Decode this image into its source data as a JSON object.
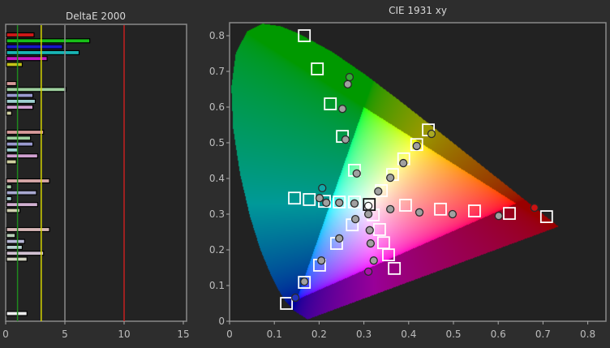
{
  "chart_data": [
    {
      "type": "bar",
      "orientation": "horizontal",
      "title": "DeltaE 2000",
      "xlim": [
        0,
        15
      ],
      "xticks": [
        "0",
        "5",
        "10",
        "15"
      ],
      "reference_lines": [
        {
          "value": 1,
          "color": "#1f8a1f"
        },
        {
          "value": 3,
          "color": "#d6d600"
        },
        {
          "value": 5,
          "color": "#8a8a8a"
        },
        {
          "value": 10,
          "color": "#c42020"
        }
      ],
      "groups": [
        {
          "colors": [
            "#d01818",
            "#18c018",
            "#1818c8",
            "#18b4b4",
            "#c418c4",
            "#c4c418"
          ],
          "values": [
            2.4,
            7.1,
            4.8,
            6.2,
            3.5,
            1.4
          ]
        },
        {
          "colors": [
            "#d89a9a",
            "#9ed09e",
            "#9a9ad0",
            "#9ed0d0",
            "#d0a0d0",
            "#d0d0a0"
          ],
          "values": [
            0.9,
            5.1,
            2.3,
            2.5,
            2.3,
            0.5
          ]
        },
        {
          "colors": [
            "#d89a9a",
            "#9ed09e",
            "#9a9ad0",
            "#9ed0d0",
            "#d0a0d0",
            "#d0d0a0"
          ],
          "values": [
            3.2,
            2.1,
            2.3,
            1.0,
            2.7,
            0.9
          ]
        },
        {
          "colors": [
            "#d8a8a8",
            "#a8d0a8",
            "#a8a8d0",
            "#a8d0d0",
            "#d0b0d0",
            "#d0d0b0"
          ],
          "values": [
            3.7,
            0.5,
            2.6,
            0.5,
            2.7,
            1.2
          ]
        },
        {
          "colors": [
            "#d8b8b8",
            "#b8d0b8",
            "#b8b8d8",
            "#b8d0d0",
            "#d0c0d0",
            "#d0d0c0"
          ],
          "values": [
            3.7,
            0.8,
            1.6,
            1.4,
            3.2,
            1.8
          ]
        },
        {
          "colors": [
            "#eeeeee"
          ],
          "values": [
            1.8
          ]
        }
      ]
    },
    {
      "type": "scatter",
      "title": "CIE 1931 xy",
      "xlim": [
        0,
        0.84
      ],
      "ylim": [
        0,
        0.84
      ],
      "xticks": [
        "0",
        "0.1",
        "0.2",
        "0.3",
        "0.4",
        "0.5",
        "0.6",
        "0.7",
        "0.8"
      ],
      "yticks": [
        "0",
        "0.1",
        "0.2",
        "0.3",
        "0.4",
        "0.5",
        "0.6",
        "0.7",
        "0.8"
      ],
      "ramps": [
        {
          "color": "#33aa33",
          "target": [
            [
              0.167,
              0.8
            ],
            [
              0.196,
              0.707
            ],
            [
              0.225,
              0.609
            ],
            [
              0.252,
              0.518
            ],
            [
              0.279,
              0.423
            ]
          ],
          "measured": [
            [
              0.268,
              0.684
            ],
            [
              0.264,
              0.664
            ],
            [
              0.252,
              0.595
            ],
            [
              0.259,
              0.509
            ],
            [
              0.284,
              0.414
            ]
          ]
        },
        {
          "color": "#aaaa22",
          "target": [
            [
              0.444,
              0.536
            ],
            [
              0.418,
              0.495
            ],
            [
              0.389,
              0.455
            ],
            [
              0.364,
              0.411
            ],
            [
              0.339,
              0.366
            ]
          ],
          "measured": [
            [
              0.451,
              0.525
            ],
            [
              0.418,
              0.491
            ],
            [
              0.388,
              0.443
            ],
            [
              0.359,
              0.402
            ],
            [
              0.332,
              0.364
            ]
          ]
        },
        {
          "color": "#cc1111",
          "target": [
            [
              0.708,
              0.293
            ],
            [
              0.625,
              0.302
            ],
            [
              0.547,
              0.309
            ],
            [
              0.471,
              0.314
            ],
            [
              0.393,
              0.325
            ]
          ],
          "measured": [
            [
              0.681,
              0.318
            ],
            [
              0.601,
              0.295
            ],
            [
              0.498,
              0.3
            ],
            [
              0.424,
              0.305
            ],
            [
              0.359,
              0.314
            ]
          ]
        },
        {
          "color": "#11a8a8",
          "target": [
            [
              0.145,
              0.345
            ],
            [
              0.178,
              0.341
            ],
            [
              0.212,
              0.336
            ],
            [
              0.245,
              0.334
            ],
            [
              0.279,
              0.334
            ]
          ],
          "measured": [
            [
              0.207,
              0.373
            ],
            [
              0.201,
              0.345
            ],
            [
              0.216,
              0.332
            ],
            [
              0.245,
              0.332
            ],
            [
              0.279,
              0.33
            ]
          ]
        },
        {
          "color": "#2233bb",
          "target": [
            [
              0.127,
              0.05
            ],
            [
              0.167,
              0.109
            ],
            [
              0.201,
              0.157
            ],
            [
              0.239,
              0.218
            ],
            [
              0.274,
              0.27
            ]
          ],
          "measured": [
            [
              0.147,
              0.066
            ],
            [
              0.167,
              0.111
            ],
            [
              0.205,
              0.17
            ],
            [
              0.245,
              0.232
            ],
            [
              0.281,
              0.286
            ]
          ]
        },
        {
          "color": "#aa11aa",
          "target": [
            [
              0.368,
              0.148
            ],
            [
              0.355,
              0.186
            ],
            [
              0.344,
              0.22
            ],
            [
              0.335,
              0.257
            ],
            [
              0.321,
              0.298
            ]
          ],
          "measured": [
            [
              0.31,
              0.139
            ],
            [
              0.322,
              0.17
            ],
            [
              0.315,
              0.218
            ],
            [
              0.313,
              0.255
            ],
            [
              0.31,
              0.3
            ]
          ]
        }
      ],
      "white_point": {
        "target": [
          0.312,
          0.327
        ],
        "measured": [
          0.31,
          0.323
        ],
        "color": "#ffffff"
      }
    }
  ]
}
